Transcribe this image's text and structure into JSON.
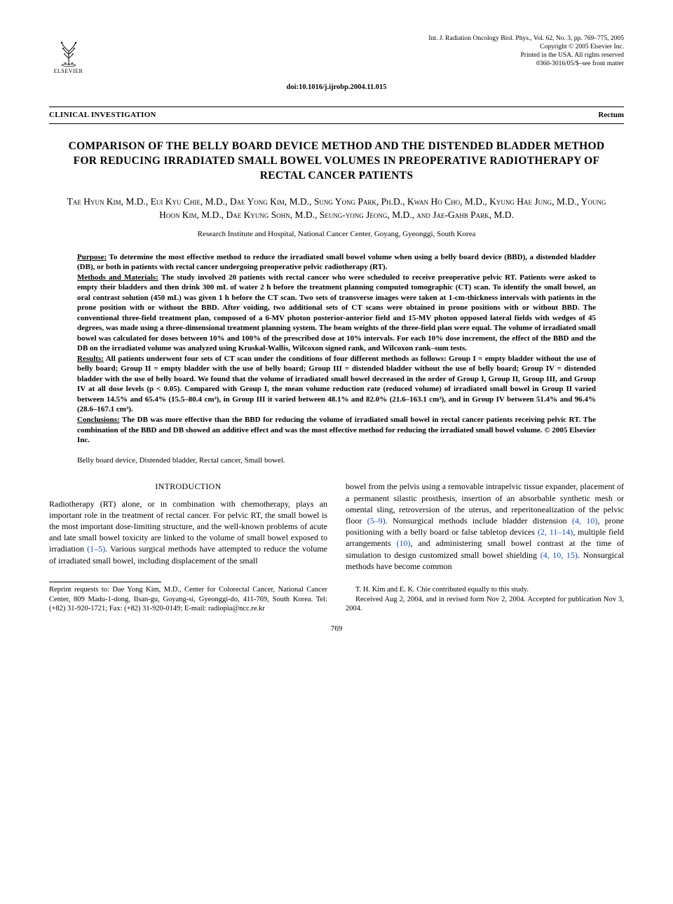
{
  "logo": {
    "publisher": "ELSEVIER"
  },
  "journal": {
    "citation": "Int. J. Radiation Oncology Biol. Phys., Vol. 62, No. 3, pp. 769–775, 2005",
    "copyright": "Copyright © 2005 Elsevier Inc.",
    "printed": "Printed in the USA. All rights reserved",
    "issn": "0360-3016/05/$–see front matter"
  },
  "doi": "doi:10.1016/j.ijrobp.2004.11.015",
  "sectionBar": {
    "left": "CLINICAL INVESTIGATION",
    "right": "Rectum"
  },
  "title": "COMPARISON OF THE BELLY BOARD DEVICE METHOD AND THE DISTENDED BLADDER METHOD FOR REDUCING IRRADIATED SMALL BOWEL VOLUMES IN PREOPERATIVE RADIOTHERAPY OF RECTAL CANCER PATIENTS",
  "authors": "Tae Hyun Kim, M.D., Eui Kyu Chie, M.D., Dae Yong Kim, M.D., Sung Yong Park, Ph.D., Kwan Ho Cho, M.D., Kyung Hae Jung, M.D., Young Hoon Kim, M.D., Dae Kyung Sohn, M.D., Seung-yong Jeong, M.D., and Jae-Gahb Park, M.D.",
  "affiliation": "Research Institute and Hospital, National Cancer Center, Goyang, Gyeonggi, South Korea",
  "abstract": {
    "purpose": {
      "label": "Purpose:",
      "text": " To determine the most effective method to reduce the irradiated small bowel volume when using a belly board device (BBD), a distended bladder (DB), or both in patients with rectal cancer undergoing preoperative pelvic radiotherapy (RT)."
    },
    "methods": {
      "label": "Methods and Materials:",
      "text": " The study involved 20 patients with rectal cancer who were scheduled to receive preoperative pelvic RT. Patients were asked to empty their bladders and then drink 300 mL of water 2 h before the treatment planning computed tomographic (CT) scan. To identify the small bowel, an oral contrast solution (450 mL) was given 1 h before the CT scan. Two sets of transverse images were taken at 1-cm-thickness intervals with patients in the prone position with or without the BBD. After voiding, two additional sets of CT scans were obtained in prone positions with or without BBD. The conventional three-field treatment plan, composed of a 6-MV photon posterior-anterior field and 15-MV photon opposed lateral fields with wedges of 45 degrees, was made using a three-dimensional treatment planning system. The beam weights of the three-field plan were equal. The volume of irradiated small bowel was calculated for doses between 10% and 100% of the prescribed dose at 10% intervals. For each 10% dose increment, the effect of the BBD and the DB on the irradiated volume was analyzed using Kruskal-Wallis, Wilcoxon signed rank, and Wilcoxon rank–sum tests."
    },
    "results": {
      "label": "Results:",
      "text": " All patients underwent four sets of CT scan under the conditions of four different methods as follows: Group I = empty bladder without the use of belly board; Group II = empty bladder with the use of belly board; Group III = distended bladder without the use of belly board; Group IV = distended bladder with the use of belly board. We found that the volume of irradiated small bowel decreased in the order of Group I, Group II, Group III, and Group IV at all dose levels (p < 0.05). Compared with Group I, the mean volume reduction rate (reduced volume) of irradiated small bowel in Group II varied between 14.5% and 65.4% (15.5–80.4 cm³), in Group III it varied between 48.1% and 82.0% (21.6–163.1 cm³), and in Group IV between 51.4% and 96.4% (28.6–167.1 cm³)."
    },
    "conclusions": {
      "label": "Conclusions:",
      "text": " The DB was more effective than the BBD for reducing the volume of irradiated small bowel in rectal cancer patients receiving pelvic RT. The combination of the BBD and DB showed an additive effect and was the most effective method for reducing the irradiated small bowel volume.   © 2005 Elsevier Inc."
    }
  },
  "keywords": "Belly board device, Distended bladder, Rectal cancer, Small bowel.",
  "introHeading": "INTRODUCTION",
  "body": {
    "left": {
      "p1a": "Radiotherapy (RT) alone, or in combination with chemotherapy, plays an important role in the treatment of rectal cancer. For pelvic RT, the small bowel is the most important dose-limiting structure, and the well-known problems of acute and late small bowel toxicity are linked to the volume of small bowel exposed to irradiation ",
      "c1": "(1–5)",
      "p1b": ". Various surgical methods have attempted to reduce the volume of irradiated small bowel, including displacement of the small"
    },
    "right": {
      "p1a": "bowel from the pelvis using a removable intrapelvic tissue expander, placement of a permanent silastic prosthesis, insertion of an absorbable synthetic mesh or omental sling, retroversion of the uterus, and reperitonealization of the pelvic floor ",
      "c1": "(5–9)",
      "p1b": ". Nonsurgical methods include bladder distension ",
      "c2": "(4, 10)",
      "p1c": ", prone positioning with a belly board or false tabletop devices ",
      "c3": "(2, 11–14)",
      "p1d": ", multiple field arrangements ",
      "c4": "(10)",
      "p1e": ", and administering small bowel contrast at the time of simulation to design customized small bowel shielding ",
      "c5": "(4, 10, 15)",
      "p1f": ". Nonsurgical methods have become common"
    }
  },
  "footnotes": {
    "left": "Reprint requests to: Dae Yong Kim, M.D., Center for Colorectal Cancer, National Cancer Center, 809 Madu-1-dong, Ilsan-gu, Goyang-si, Gyeonggi-do, 411-769, South Korea. Tel: (+82) 31-920-1721; Fax: (+82) 31-920-0149; E-mail: radiopia@ncc.re.kr",
    "right": "T. H. Kim and E. K. Chie contributed equally to this study.\nReceived Aug 2, 2004, and in revised form Nov 2, 2004. Accepted for publication Nov 3, 2004."
  },
  "pageNumber": "769",
  "colors": {
    "citation": "#1a4aa8",
    "text": "#000000",
    "background": "#ffffff"
  }
}
